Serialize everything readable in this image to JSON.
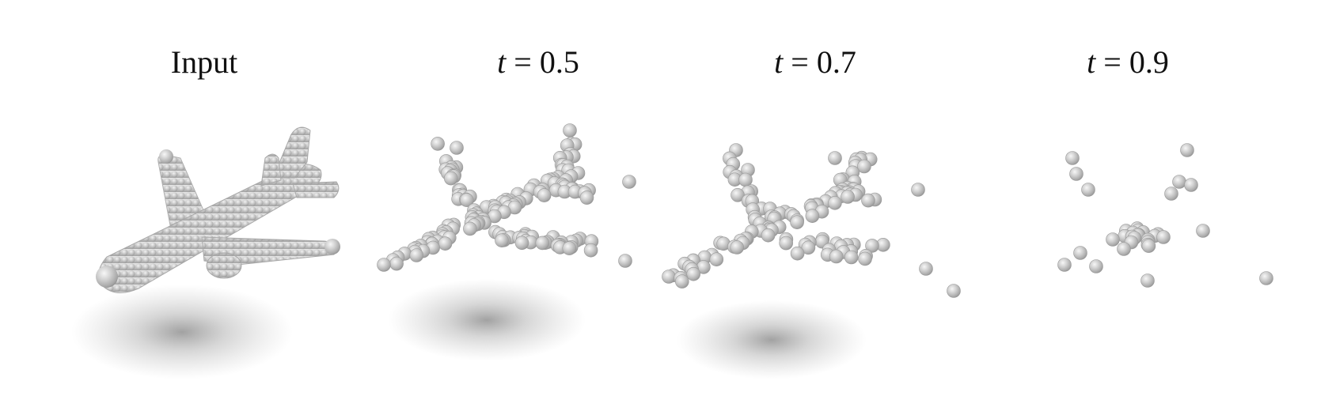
{
  "figure": {
    "panels": [
      {
        "id": "input",
        "title_main": "Input",
        "title_var": "",
        "title_rest": ""
      },
      {
        "id": "t05",
        "title_main": "",
        "title_var": "t",
        "title_rest": " = 0.5"
      },
      {
        "id": "t07",
        "title_main": "",
        "title_var": "t",
        "title_rest": " =  0.7"
      },
      {
        "id": "t09",
        "title_main": "",
        "title_var": "t",
        "title_rest": " =  0.9"
      }
    ],
    "subject": "airplane point cloud",
    "colors": {
      "sphere": "#c8c8c8",
      "sphere_edge": "#9a9a9a",
      "shadow": "#7a7a7a",
      "background": "#ffffff"
    }
  }
}
